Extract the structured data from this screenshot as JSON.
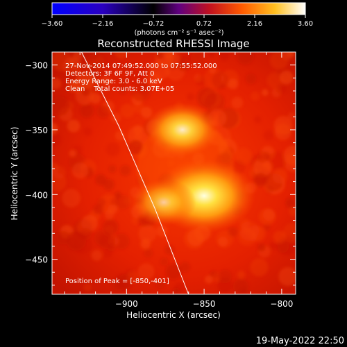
{
  "colorbar": {
    "ticks": [
      "-3.60",
      "-2.16",
      "-0.72",
      "0.72",
      "2.16",
      "3.60"
    ],
    "units_label": "(photons cm⁻² s⁻¹ asec⁻²)"
  },
  "chart_data": {
    "type": "heatmap",
    "title": "Reconstructed RHESSI Image",
    "xlabel": "Heliocentric X (arcsec)",
    "ylabel": "Heliocentric Y (arcsec)",
    "xlim": [
      -948,
      -791
    ],
    "ylim": [
      -477,
      -290
    ],
    "xticks": [
      -900,
      -850,
      -800
    ],
    "xtick_labels": [
      "−900",
      "−850",
      "−800"
    ],
    "yticks": [
      -300,
      -350,
      -400,
      -450
    ],
    "ytick_labels": [
      "−300",
      "−350",
      "−400",
      "−450"
    ],
    "colorbar_range": [
      -3.6,
      3.6
    ],
    "sources": [
      {
        "x": -864,
        "y": -350,
        "sigma": 8,
        "peak": 0.9
      },
      {
        "x": -850,
        "y": -401,
        "sigma": 11,
        "peak": 1.0
      },
      {
        "x": -876,
        "y": -406,
        "sigma": 7,
        "peak": 0.7
      }
    ],
    "limb": [
      [
        -929,
        -290
      ],
      [
        -905,
        -347
      ],
      [
        -882,
        -410
      ],
      [
        -860,
        -477
      ]
    ],
    "annotations": [
      "27-Nov-2014 07:49:52.000 to 07:55:52.000",
      "Detectors: 3F 6F 9F, Att 0",
      "Energy Range: 3.0 - 6.0 keV",
      "Clean    Total counts: 3.07E+05"
    ],
    "peak_label": "Position of Peak = [-850,-401]"
  },
  "footer": {
    "date": "19-May-2022 22:50"
  }
}
